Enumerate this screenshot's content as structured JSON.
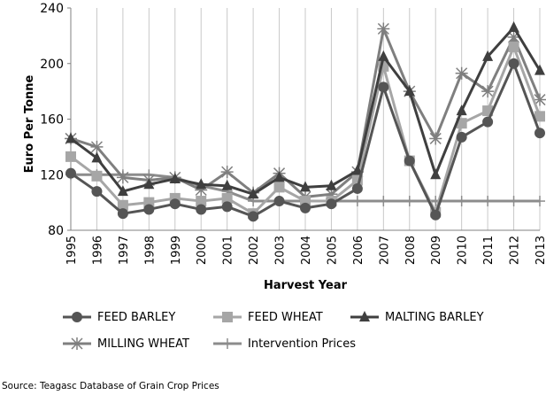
{
  "chart_data": {
    "type": "line",
    "title": "",
    "xlabel": "Harvest Year",
    "ylabel": "Euro Per Tonne",
    "ylim": [
      80,
      240
    ],
    "yticks": [
      80,
      120,
      160,
      200,
      240
    ],
    "grid": "vertical",
    "legend_position": "bottom",
    "x": [
      "1995",
      "1996",
      "1997",
      "1998",
      "1999",
      "2000",
      "2001",
      "2002",
      "2003",
      "2004",
      "2005",
      "2006",
      "2007",
      "2008",
      "2009",
      "2010",
      "2011",
      "2012",
      "2013"
    ],
    "series": [
      {
        "name": "FEED BARLEY",
        "color": "#555555",
        "marker": "circle",
        "values": [
          121,
          108,
          92,
          95,
          99,
          95,
          97,
          90,
          101,
          96,
          99,
          110,
          183,
          130,
          91,
          147,
          158,
          200,
          150
        ]
      },
      {
        "name": "FEED WHEAT",
        "color": "#a6a6a6",
        "marker": "square",
        "values": [
          133,
          119,
          98,
          100,
          103,
          101,
          103,
          92,
          111,
          101,
          101,
          116,
          198,
          130,
          93,
          157,
          166,
          212,
          162
        ]
      },
      {
        "name": "MALTING BARLEY",
        "color": "#3f3f3f",
        "marker": "triangle",
        "values": [
          146,
          132,
          108,
          113,
          117,
          113,
          112,
          106,
          118,
          111,
          112,
          123,
          205,
          180,
          120,
          166,
          205,
          226,
          195
        ]
      },
      {
        "name": "MILLING WHEAT",
        "color": "#7f7f7f",
        "marker": "star",
        "values": [
          146,
          140,
          118,
          116,
          118,
          109,
          122,
          107,
          121,
          104,
          106,
          122,
          225,
          180,
          146,
          193,
          180,
          219,
          174
        ]
      },
      {
        "name": "Intervention Prices",
        "color": "#8c8c8c",
        "marker": "plus",
        "values": [
          120,
          120,
          120,
          120,
          118,
          112,
          108,
          101,
          101,
          101,
          101,
          101,
          101,
          101,
          101,
          101,
          101,
          101,
          101
        ]
      }
    ]
  },
  "source_text": "Source: Teagasc Database of Grain Crop Prices"
}
